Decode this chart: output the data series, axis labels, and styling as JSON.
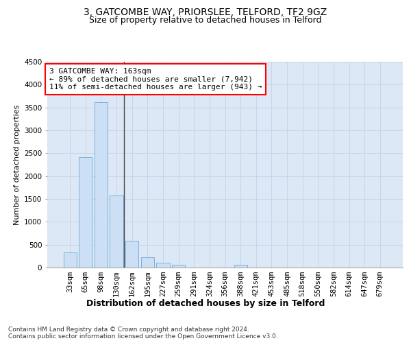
{
  "title_line1": "3, GATCOMBE WAY, PRIORSLEE, TELFORD, TF2 9GZ",
  "title_line2": "Size of property relative to detached houses in Telford",
  "xlabel": "Distribution of detached houses by size in Telford",
  "ylabel": "Number of detached properties",
  "categories": [
    "33sqm",
    "65sqm",
    "98sqm",
    "130sqm",
    "162sqm",
    "195sqm",
    "227sqm",
    "259sqm",
    "291sqm",
    "324sqm",
    "356sqm",
    "388sqm",
    "421sqm",
    "453sqm",
    "485sqm",
    "518sqm",
    "550sqm",
    "582sqm",
    "614sqm",
    "647sqm",
    "679sqm"
  ],
  "values": [
    330,
    2420,
    3620,
    1580,
    580,
    230,
    110,
    65,
    0,
    0,
    0,
    55,
    0,
    0,
    0,
    0,
    0,
    0,
    0,
    0,
    0
  ],
  "bar_color": "#ccdff5",
  "bar_edge_color": "#6aaad4",
  "annotation_text": "3 GATCOMBE WAY: 163sqm\n← 89% of detached houses are smaller (7,942)\n11% of semi-detached houses are larger (943) →",
  "annotation_box_color": "white",
  "annotation_box_edge_color": "red",
  "vline_color": "#444444",
  "vline_x": 3.5,
  "ylim": [
    0,
    4500
  ],
  "yticks": [
    0,
    500,
    1000,
    1500,
    2000,
    2500,
    3000,
    3500,
    4000,
    4500
  ],
  "grid_color": "#c8d4e8",
  "bg_color": "#dce8f5",
  "footnote": "Contains HM Land Registry data © Crown copyright and database right 2024.\nContains public sector information licensed under the Open Government Licence v3.0.",
  "title_fontsize": 10,
  "subtitle_fontsize": 9,
  "xlabel_fontsize": 9,
  "ylabel_fontsize": 8,
  "tick_fontsize": 7.5,
  "annotation_fontsize": 8,
  "footnote_fontsize": 6.5
}
